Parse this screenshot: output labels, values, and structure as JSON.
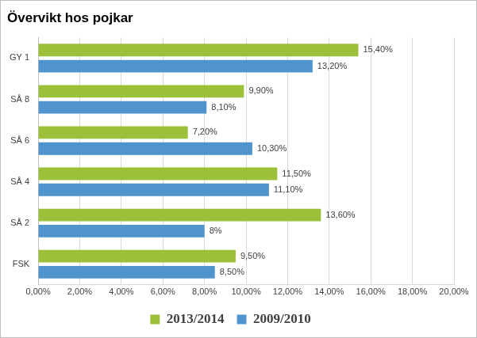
{
  "chart_data": {
    "type": "bar",
    "orientation": "horizontal",
    "title": "Övervikt hos pojkar",
    "categories": [
      "GY 1",
      "SÅ 8",
      "SÅ 6",
      "SÅ 4",
      "SÅ 2",
      "FSK"
    ],
    "series": [
      {
        "name": "2013/2014",
        "color": "#9dc03b",
        "values": [
          15.4,
          9.9,
          7.2,
          11.5,
          13.6,
          9.5
        ],
        "value_labels": [
          "15,40%",
          "9,90%",
          "7,20%",
          "11,50%",
          "13,60%",
          "9,50%"
        ]
      },
      {
        "name": "2009/2010",
        "color": "#4f94cd",
        "values": [
          13.2,
          8.1,
          10.3,
          11.1,
          8,
          8.5
        ],
        "value_labels": [
          "13,20%",
          "8,10%",
          "10,30%",
          "11,10%",
          "8%",
          "8,50%"
        ]
      }
    ],
    "xlim": [
      0,
      20
    ],
    "xticks": [
      {
        "value": 0,
        "label": "0,00%"
      },
      {
        "value": 2,
        "label": "2,00%"
      },
      {
        "value": 4,
        "label": "4,00%"
      },
      {
        "value": 6,
        "label": "6,00%"
      },
      {
        "value": 8,
        "label": "8,00%"
      },
      {
        "value": 10,
        "label": "10,00%"
      },
      {
        "value": 12,
        "label": "12,00%"
      },
      {
        "value": 14,
        "label": "14,00%"
      },
      {
        "value": 16,
        "label": "16,00%"
      },
      {
        "value": 18,
        "label": "18,00%"
      },
      {
        "value": 20,
        "label": "20,00%"
      }
    ],
    "grid": true,
    "legend": "bottom",
    "data_labels": true
  }
}
